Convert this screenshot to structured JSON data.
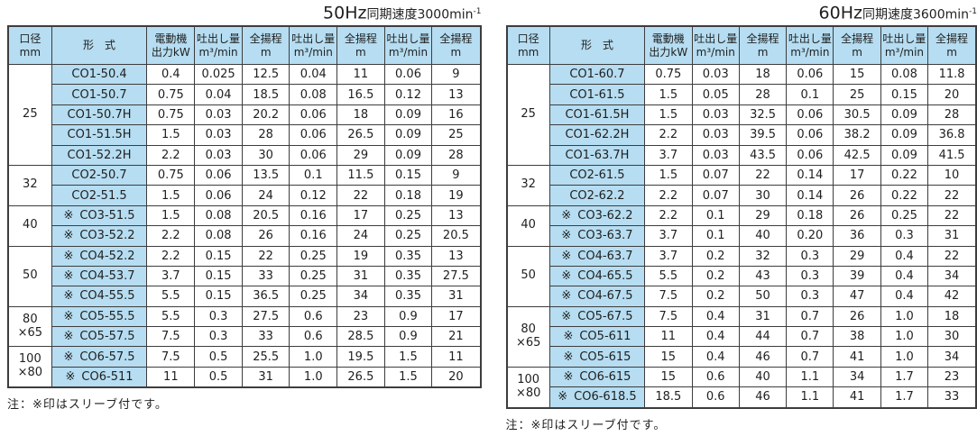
{
  "colors": {
    "cell_blue": "#b6ddf1",
    "border_dark": "#3d3d3d",
    "text": "#1f1f1f"
  },
  "tables": [
    {
      "title": {
        "freq": "50Hz",
        "label": "同期速度3000min",
        "sup": "-1"
      },
      "header": {
        "diameter_line1": "口径",
        "diameter_line2": "mm",
        "model": "形　式",
        "motor_line1": "電動機",
        "motor_line2": "出力kW",
        "discharge_line1": "吐出し量",
        "discharge_line2": "m³/min",
        "head_line1": "全揚程",
        "head_line2": "m"
      },
      "sleeve_marker": "※",
      "note": "注：※印はスリーブ付です。",
      "groups": [
        {
          "diameter": [
            "25"
          ],
          "rows": [
            {
              "model": "CO1-50.4",
              "sleeve": false,
              "values": [
                "0.4",
                "0.025",
                "12.5",
                "0.04",
                "11",
                "0.06",
                "9"
              ]
            },
            {
              "model": "CO1-50.7",
              "sleeve": false,
              "values": [
                "0.75",
                "0.04",
                "18.5",
                "0.08",
                "16.5",
                "0.12",
                "13"
              ]
            },
            {
              "model": "CO1-50.7H",
              "sleeve": false,
              "values": [
                "0.75",
                "0.03",
                "20.2",
                "0.06",
                "18",
                "0.09",
                "16"
              ]
            },
            {
              "model": "CO1-51.5H",
              "sleeve": false,
              "values": [
                "1.5",
                "0.03",
                "28",
                "0.06",
                "26.5",
                "0.09",
                "25"
              ]
            },
            {
              "model": "CO1-52.2H",
              "sleeve": false,
              "values": [
                "2.2",
                "0.03",
                "30",
                "0.06",
                "29",
                "0.09",
                "28"
              ]
            }
          ]
        },
        {
          "diameter": [
            "32"
          ],
          "rows": [
            {
              "model": "CO2-50.7",
              "sleeve": false,
              "values": [
                "0.75",
                "0.06",
                "13.5",
                "0.1",
                "11.5",
                "0.15",
                "9"
              ]
            },
            {
              "model": "CO2-51.5",
              "sleeve": false,
              "values": [
                "1.5",
                "0.06",
                "24",
                "0.12",
                "22",
                "0.18",
                "19"
              ]
            }
          ]
        },
        {
          "diameter": [
            "40"
          ],
          "rows": [
            {
              "model": "CO3-51.5",
              "sleeve": true,
              "values": [
                "1.5",
                "0.08",
                "20.5",
                "0.16",
                "17",
                "0.25",
                "13"
              ]
            },
            {
              "model": "CO3-52.2",
              "sleeve": true,
              "values": [
                "2.2",
                "0.08",
                "26",
                "0.16",
                "24",
                "0.25",
                "20.5"
              ]
            }
          ]
        },
        {
          "diameter": [
            "50"
          ],
          "rows": [
            {
              "model": "CO4-52.2",
              "sleeve": true,
              "values": [
                "2.2",
                "0.15",
                "22",
                "0.25",
                "19",
                "0.35",
                "13"
              ]
            },
            {
              "model": "CO4-53.7",
              "sleeve": true,
              "values": [
                "3.7",
                "0.15",
                "33",
                "0.25",
                "31",
                "0.35",
                "27.5"
              ]
            },
            {
              "model": "CO4-55.5",
              "sleeve": true,
              "values": [
                "5.5",
                "0.15",
                "36.5",
                "0.25",
                "34",
                "0.35",
                "31"
              ]
            }
          ]
        },
        {
          "diameter": [
            "80",
            "×65"
          ],
          "rows": [
            {
              "model": "CO5-55.5",
              "sleeve": true,
              "values": [
                "5.5",
                "0.3",
                "27.5",
                "0.6",
                "23",
                "0.9",
                "17"
              ]
            },
            {
              "model": "CO5-57.5",
              "sleeve": true,
              "values": [
                "7.5",
                "0.3",
                "33",
                "0.6",
                "28.5",
                "0.9",
                "21"
              ]
            }
          ]
        },
        {
          "diameter": [
            "100",
            "×80"
          ],
          "rows": [
            {
              "model": "CO6-57.5",
              "sleeve": true,
              "values": [
                "7.5",
                "0.5",
                "25.5",
                "1.0",
                "19.5",
                "1.5",
                "11"
              ]
            },
            {
              "model": "CO6-511",
              "sleeve": true,
              "values": [
                "11",
                "0.5",
                "31",
                "1.0",
                "26.5",
                "1.5",
                "20"
              ]
            }
          ]
        }
      ]
    },
    {
      "title": {
        "freq": "60Hz",
        "label": "同期速度3600min",
        "sup": "-1"
      },
      "header": {
        "diameter_line1": "口径",
        "diameter_line2": "mm",
        "model": "形　式",
        "motor_line1": "電動機",
        "motor_line2": "出力kW",
        "discharge_line1": "吐出し量",
        "discharge_line2": "m³/min",
        "head_line1": "全揚程",
        "head_line2": "m"
      },
      "sleeve_marker": "※",
      "note": "注：※印はスリーブ付です。",
      "groups": [
        {
          "diameter": [
            "25"
          ],
          "rows": [
            {
              "model": "CO1-60.7",
              "sleeve": false,
              "values": [
                "0.75",
                "0.03",
                "18",
                "0.06",
                "15",
                "0.08",
                "11.8"
              ]
            },
            {
              "model": "CO1-61.5",
              "sleeve": false,
              "values": [
                "1.5",
                "0.05",
                "28",
                "0.1",
                "25",
                "0.15",
                "20"
              ]
            },
            {
              "model": "CO1-61.5H",
              "sleeve": false,
              "values": [
                "1.5",
                "0.03",
                "32.5",
                "0.06",
                "30.5",
                "0.09",
                "28"
              ]
            },
            {
              "model": "CO1-62.2H",
              "sleeve": false,
              "values": [
                "2.2",
                "0.03",
                "39.5",
                "0.06",
                "38.2",
                "0.09",
                "36.8"
              ]
            },
            {
              "model": "CO1-63.7H",
              "sleeve": false,
              "values": [
                "3.7",
                "0.03",
                "43.5",
                "0.06",
                "42.5",
                "0.09",
                "41.5"
              ]
            }
          ]
        },
        {
          "diameter": [
            "32"
          ],
          "rows": [
            {
              "model": "CO2-61.5",
              "sleeve": false,
              "values": [
                "1.5",
                "0.07",
                "22",
                "0.14",
                "17",
                "0.22",
                "10"
              ]
            },
            {
              "model": "CO2-62.2",
              "sleeve": false,
              "values": [
                "2.2",
                "0.07",
                "30",
                "0.14",
                "26",
                "0.22",
                "22"
              ]
            }
          ]
        },
        {
          "diameter": [
            "40"
          ],
          "rows": [
            {
              "model": "CO3-62.2",
              "sleeve": true,
              "values": [
                "2.2",
                "0.1",
                "29",
                "0.18",
                "26",
                "0.25",
                "22"
              ]
            },
            {
              "model": "CO3-63.7",
              "sleeve": true,
              "values": [
                "3.7",
                "0.1",
                "40",
                "0.20",
                "36",
                "0.3",
                "31"
              ]
            }
          ]
        },
        {
          "diameter": [
            "50"
          ],
          "rows": [
            {
              "model": "CO4-63.7",
              "sleeve": true,
              "values": [
                "3.7",
                "0.2",
                "32",
                "0.3",
                "29",
                "0.4",
                "22"
              ]
            },
            {
              "model": "CO4-65.5",
              "sleeve": true,
              "values": [
                "5.5",
                "0.2",
                "43",
                "0.3",
                "39",
                "0.4",
                "34"
              ]
            },
            {
              "model": "CO4-67.5",
              "sleeve": true,
              "values": [
                "7.5",
                "0.2",
                "50",
                "0.3",
                "47",
                "0.4",
                "42"
              ]
            }
          ]
        },
        {
          "diameter": [
            "80",
            "×65"
          ],
          "rows": [
            {
              "model": "CO5-67.5",
              "sleeve": true,
              "values": [
                "7.5",
                "0.4",
                "31",
                "0.7",
                "26",
                "1.0",
                "18"
              ]
            },
            {
              "model": "CO5-611",
              "sleeve": true,
              "values": [
                "11",
                "0.4",
                "44",
                "0.7",
                "38",
                "1.0",
                "30"
              ]
            },
            {
              "model": "CO5-615",
              "sleeve": true,
              "values": [
                "15",
                "0.4",
                "46",
                "0.7",
                "41",
                "1.0",
                "34"
              ]
            }
          ]
        },
        {
          "diameter": [
            "100",
            "×80"
          ],
          "rows": [
            {
              "model": "CO6-615",
              "sleeve": true,
              "values": [
                "15",
                "0.6",
                "40",
                "1.1",
                "34",
                "1.7",
                "23"
              ]
            },
            {
              "model": "CO6-618.5",
              "sleeve": true,
              "values": [
                "18.5",
                "0.6",
                "46",
                "1.1",
                "41",
                "1.7",
                "33"
              ]
            }
          ]
        }
      ]
    }
  ]
}
